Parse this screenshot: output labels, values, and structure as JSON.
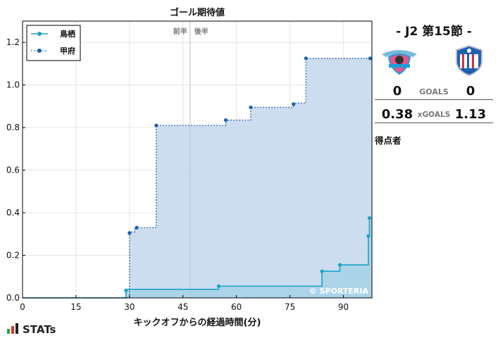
{
  "match": {
    "title": "- J2 第15節 -",
    "goals_label": "GOALS",
    "xgoals_label": "xGOALS",
    "scorers_label": "得点者",
    "home": {
      "team": "鳥栖",
      "goals": "0",
      "xg": "0.38",
      "crest_text": "SAGAN TOSU",
      "color": "#1e9fd6"
    },
    "away": {
      "team": "甲府",
      "goals": "0",
      "xg": "1.13",
      "crest_text": "VENTFORET",
      "color": "#1f5fb0"
    }
  },
  "brand": {
    "text": "STATs",
    "watermark": "© SPORTERIA"
  },
  "chart_data": {
    "type": "area",
    "title": "ゴール期待値",
    "xlabel": "キックオフからの経過時間(分)",
    "ylabel": "",
    "xlim": [
      0,
      98
    ],
    "ylim": [
      0,
      1.3
    ],
    "xticks": [
      0,
      15,
      30,
      45,
      60,
      75,
      90
    ],
    "yticks": [
      0.0,
      0.2,
      0.4,
      0.6,
      0.8,
      1.0,
      1.2
    ],
    "grid": true,
    "legend_position": "top-left",
    "halftime": {
      "minute": 47,
      "first_half_label": "前半",
      "second_half_label": "後半"
    },
    "series": [
      {
        "name": "鳥栖",
        "style": "solid",
        "color": "#1aa3c8",
        "fill": "#a9d3e8",
        "steps": [
          [
            0,
            0
          ],
          [
            29,
            0.04
          ],
          [
            55,
            0.055
          ],
          [
            84,
            0.125
          ],
          [
            89,
            0.155
          ],
          [
            97,
            0.29
          ],
          [
            97.3,
            0.375
          ]
        ],
        "marker_points": [
          [
            29,
            0.035
          ],
          [
            55,
            0.055
          ],
          [
            84,
            0.125
          ],
          [
            89,
            0.155
          ],
          [
            97,
            0.29
          ],
          [
            97.3,
            0.375
          ]
        ]
      },
      {
        "name": "甲府",
        "style": "dotted",
        "color": "#1f5fb0",
        "fill": "#c7d9ee",
        "steps": [
          [
            0,
            0
          ],
          [
            30,
            0.31
          ],
          [
            31.5,
            0.33
          ],
          [
            37.5,
            0.81
          ],
          [
            57,
            0.835
          ],
          [
            64,
            0.895
          ],
          [
            76,
            0.915
          ],
          [
            79.5,
            1.125
          ],
          [
            98,
            1.125
          ]
        ],
        "marker_points": [
          [
            30,
            0.305
          ],
          [
            32,
            0.33
          ],
          [
            37.5,
            0.81
          ],
          [
            57,
            0.835
          ],
          [
            64,
            0.895
          ],
          [
            76,
            0.91
          ],
          [
            79.5,
            1.125
          ],
          [
            97.5,
            1.125
          ]
        ]
      }
    ]
  }
}
